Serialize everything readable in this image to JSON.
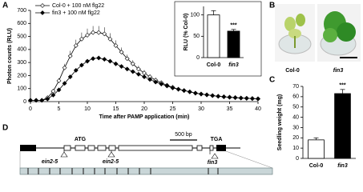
{
  "panels": [
    "A",
    "B",
    "C",
    "D"
  ],
  "chart_data": [
    {
      "type": "line",
      "ylabel": "Photon counts (RLU)",
      "xlabel": "Time after PAMP application (min)",
      "x": [
        0,
        1,
        2,
        3,
        4,
        5,
        6,
        7,
        8,
        9,
        10,
        11,
        12,
        13,
        14,
        15,
        16,
        17,
        18,
        19,
        20,
        21,
        22,
        23,
        24,
        25,
        26,
        27,
        28,
        29,
        30,
        31,
        32,
        33,
        34,
        35,
        36,
        37,
        38,
        39,
        40
      ],
      "xlim": [
        0,
        40
      ],
      "xticks": [
        0,
        5,
        10,
        15,
        20,
        25,
        30,
        35,
        40
      ],
      "ylim": [
        0,
        700
      ],
      "yticks": [
        0,
        100,
        200,
        300,
        400,
        500,
        600,
        700
      ],
      "series": [
        {
          "name": "Col-0 + 100 nM flg22",
          "color": "#ffffff",
          "values": [
            10,
            10,
            10,
            30,
            80,
            160,
            260,
            350,
            430,
            480,
            510,
            530,
            530,
            520,
            480,
            430,
            380,
            330,
            290,
            250,
            220,
            190,
            165,
            145,
            125,
            110,
            95,
            85,
            75,
            65,
            58,
            52,
            46,
            41,
            37,
            34,
            31,
            28,
            26,
            24,
            22
          ],
          "errors": [
            2,
            2,
            2,
            5,
            10,
            20,
            30,
            40,
            45,
            50,
            50,
            50,
            50,
            50,
            45,
            40,
            35,
            30,
            28,
            25,
            22,
            20,
            18,
            15,
            13,
            12,
            10,
            9,
            8,
            7,
            6,
            6,
            5,
            5,
            4,
            4,
            4,
            3,
            3,
            3,
            3
          ]
        },
        {
          "name": "fin3 + 100 nM flg22",
          "color": "#000000",
          "values": [
            10,
            10,
            10,
            20,
            50,
            90,
            140,
            190,
            240,
            280,
            310,
            330,
            335,
            325,
            310,
            290,
            270,
            250,
            230,
            210,
            190,
            170,
            150,
            135,
            120,
            105,
            95,
            85,
            75,
            65,
            58,
            52,
            46,
            41,
            37,
            33,
            30,
            27,
            25,
            23,
            21
          ],
          "errors": [
            2,
            2,
            2,
            3,
            5,
            8,
            10,
            12,
            13,
            14,
            15,
            15,
            15,
            15,
            14,
            13,
            12,
            12,
            11,
            10,
            10,
            9,
            8,
            7,
            7,
            6,
            6,
            5,
            5,
            4,
            4,
            4,
            3,
            3,
            3,
            3,
            3,
            3,
            2,
            2,
            2
          ]
        }
      ]
    },
    {
      "type": "bar",
      "ylabel": "RLU (% Col-0)",
      "categories": [
        "Col-0",
        "fin3"
      ],
      "values": [
        100,
        62
      ],
      "errors": [
        10,
        4
      ],
      "colors": [
        "#ffffff",
        "#000000"
      ],
      "annotation": "***",
      "ylim": [
        0,
        120
      ],
      "yticks": [
        0,
        50,
        100
      ]
    },
    {
      "type": "bar",
      "ylabel": "Seedling weight (mg)",
      "categories": [
        "Col-0",
        "fin3"
      ],
      "values": [
        18,
        63
      ],
      "errors": [
        2,
        4
      ],
      "colors": [
        "#ffffff",
        "#000000"
      ],
      "annotation": "***",
      "ylim": [
        0,
        70
      ],
      "yticks": [
        0,
        10,
        20,
        30,
        40,
        50,
        60,
        70
      ]
    }
  ],
  "photos": [
    "Col-0",
    "fin3"
  ],
  "gene": {
    "start": "ATG",
    "stop": "TGA",
    "scale": "500 bp",
    "alleles": [
      "ein2-5",
      "ein2-5",
      "fin3"
    ]
  }
}
